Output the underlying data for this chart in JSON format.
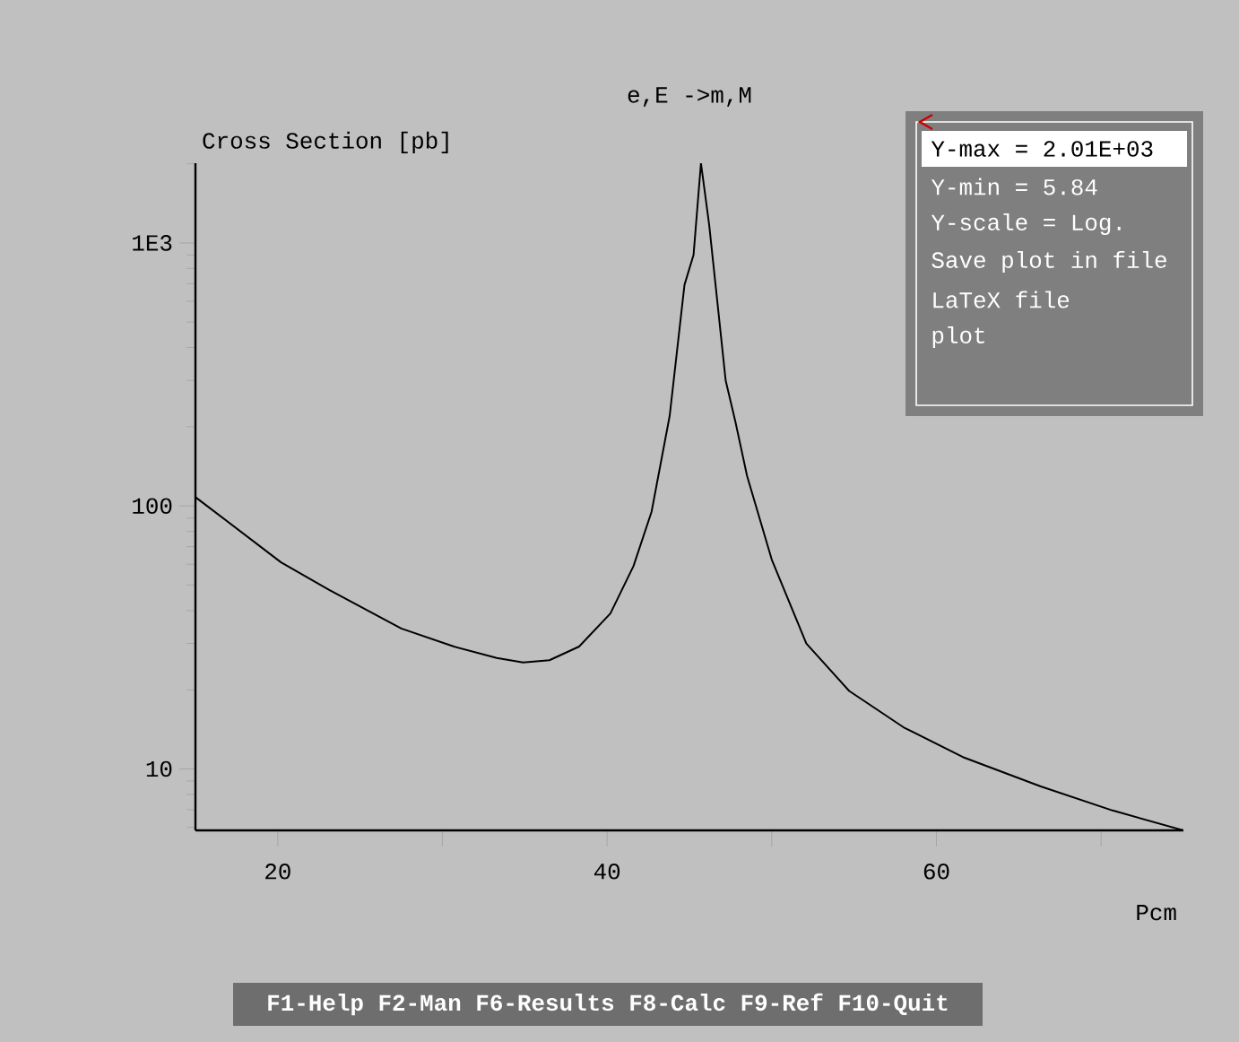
{
  "chart_data": {
    "type": "line",
    "title": "e,E ->m,M",
    "xlabel": "Pcm",
    "ylabel": "Cross Section [pb]",
    "x": [
      15,
      20.2,
      23.1,
      27.5,
      30.7,
      33.3,
      34.9,
      36.5,
      38.3,
      40.2,
      41.6,
      42.7,
      43.8,
      44.7,
      45.25,
      45.7,
      46.2,
      46.7,
      47.2,
      47.8,
      48.5,
      50,
      52.1,
      54.7,
      58,
      61.6,
      66.3,
      70.7,
      75
    ],
    "series": [
      {
        "color": "#000000",
        "values": [
          108,
          61,
          48,
          34.2,
          29.2,
          26.4,
          25.4,
          25.9,
          29.2,
          39,
          59,
          95,
          220,
          693,
          900,
          2010,
          1170,
          593,
          300,
          208,
          130,
          62.5,
          30,
          19.8,
          14.4,
          11.1,
          8.6,
          6.95,
          5.84
        ]
      }
    ],
    "log": "y",
    "xlim": [
      15,
      75
    ],
    "ylim": [
      5.84,
      2010
    ],
    "xticks": [
      20,
      {
        "value": 30,
        "label": null
      },
      40,
      {
        "value": 50,
        "label": null
      },
      60,
      {
        "value": 70,
        "label": null
      }
    ],
    "yticks": [
      10,
      100,
      {
        "value": 1000,
        "label": "1E3"
      }
    ],
    "annotations": [
      "Y-max = 2.01E+03",
      "Y-min = 5.84",
      "Y-scale = Log.",
      "Save plot in file",
      "LaTeX file",
      "plot",
      "F1-Help F2-Man F6-Results F8-Calc F9-Ref F10-Quit"
    ]
  }
}
